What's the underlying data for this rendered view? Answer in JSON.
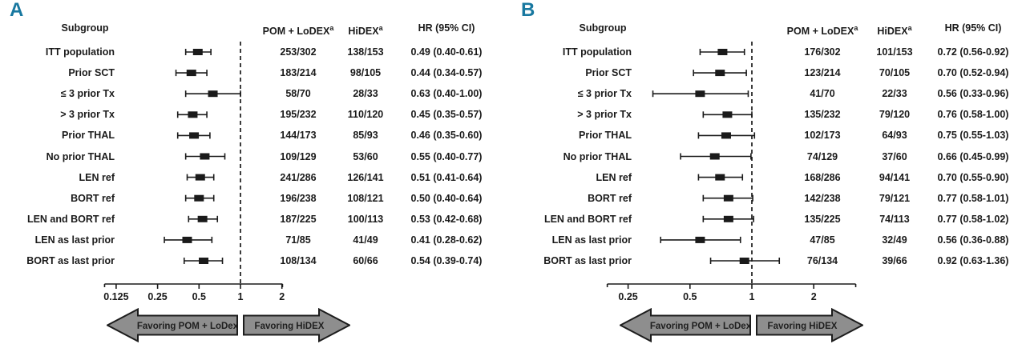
{
  "figure": {
    "background": "#ffffff",
    "accent_color": "#1878a0",
    "ink_color": "#1a1a1a",
    "arrow_fill": "#8e8e8e",
    "arrow_border": "#1c1c1c",
    "arrow_text_color": "#1f1f1f"
  },
  "chart_data": [
    {
      "type": "forest",
      "panel_label": "A",
      "columns": {
        "subgroup": "Subgroup",
        "pom_lodex": "POM + LoDEX",
        "pom_lodex_sup": "a",
        "hidex": "HiDEX",
        "hidex_sup": "a",
        "hr": "HR (95% CI)"
      },
      "rows": [
        {
          "label": "ITT population",
          "pom_lodex": "253/302",
          "hidex": "138/153",
          "hr_text": "0.49 (0.40-0.61)",
          "hr": 0.49,
          "lo": 0.4,
          "hi": 0.61
        },
        {
          "label": "Prior SCT",
          "pom_lodex": "183/214",
          "hidex": "98/105",
          "hr_text": "0.44 (0.34-0.57)",
          "hr": 0.44,
          "lo": 0.34,
          "hi": 0.57
        },
        {
          "label": "≤ 3 prior Tx",
          "pom_lodex": "58/70",
          "hidex": "28/33",
          "hr_text": "0.63 (0.40-1.00)",
          "hr": 0.63,
          "lo": 0.4,
          "hi": 1.0
        },
        {
          "label": "> 3 prior Tx",
          "pom_lodex": "195/232",
          "hidex": "110/120",
          "hr_text": "0.45 (0.35-0.57)",
          "hr": 0.45,
          "lo": 0.35,
          "hi": 0.57
        },
        {
          "label": "Prior THAL",
          "pom_lodex": "144/173",
          "hidex": "85/93",
          "hr_text": "0.46 (0.35-0.60)",
          "hr": 0.46,
          "lo": 0.35,
          "hi": 0.6
        },
        {
          "label": "No prior THAL",
          "pom_lodex": "109/129",
          "hidex": "53/60",
          "hr_text": "0.55 (0.40-0.77)",
          "hr": 0.55,
          "lo": 0.4,
          "hi": 0.77
        },
        {
          "label": "LEN ref",
          "pom_lodex": "241/286",
          "hidex": "126/141",
          "hr_text": "0.51 (0.41-0.64)",
          "hr": 0.51,
          "lo": 0.41,
          "hi": 0.64
        },
        {
          "label": "BORT ref",
          "pom_lodex": "196/238",
          "hidex": "108/121",
          "hr_text": "0.50 (0.40-0.64)",
          "hr": 0.5,
          "lo": 0.4,
          "hi": 0.64
        },
        {
          "label": "LEN and BORT ref",
          "pom_lodex": "187/225",
          "hidex": "100/113",
          "hr_text": "0.53 (0.42-0.68)",
          "hr": 0.53,
          "lo": 0.42,
          "hi": 0.68
        },
        {
          "label": "LEN as last prior",
          "pom_lodex": "71/85",
          "hidex": "41/49",
          "hr_text": "0.41 (0.28-0.62)",
          "hr": 0.41,
          "lo": 0.28,
          "hi": 0.62
        },
        {
          "label": "BORT as last prior",
          "pom_lodex": "108/134",
          "hidex": "60/66",
          "hr_text": "0.54 (0.39-0.74)",
          "hr": 0.54,
          "lo": 0.39,
          "hi": 0.74
        }
      ],
      "axis": {
        "scale": "log2",
        "ticks": [
          0.125,
          0.25,
          0.5,
          1,
          2
        ],
        "tick_labels": [
          "0.125",
          "0.25",
          "0.5",
          "1",
          "2"
        ],
        "min": 0.103,
        "max": 2.02,
        "reference_line": 1
      },
      "arrows": {
        "left": "Favoring POM + LoDex",
        "right": "Favoring HiDEX"
      }
    },
    {
      "type": "forest",
      "panel_label": "B",
      "columns": {
        "subgroup": "Subgroup",
        "pom_lodex": "POM + LoDEX",
        "pom_lodex_sup": "a",
        "hidex": "HiDEX",
        "hidex_sup": "a",
        "hr": "HR (95% CI)"
      },
      "rows": [
        {
          "label": "ITT population",
          "pom_lodex": "176/302",
          "hidex": "101/153",
          "hr_text": "0.72 (0.56-0.92)",
          "hr": 0.72,
          "lo": 0.56,
          "hi": 0.92
        },
        {
          "label": "Prior SCT",
          "pom_lodex": "123/214",
          "hidex": "70/105",
          "hr_text": "0.70 (0.52-0.94)",
          "hr": 0.7,
          "lo": 0.52,
          "hi": 0.94
        },
        {
          "label": "≤ 3 prior Tx",
          "pom_lodex": "41/70",
          "hidex": "22/33",
          "hr_text": "0.56 (0.33-0.96)",
          "hr": 0.56,
          "lo": 0.33,
          "hi": 0.96
        },
        {
          "label": "> 3 prior Tx",
          "pom_lodex": "135/232",
          "hidex": "79/120",
          "hr_text": "0.76 (0.58-1.00)",
          "hr": 0.76,
          "lo": 0.58,
          "hi": 1.0
        },
        {
          "label": "Prior THAL",
          "pom_lodex": "102/173",
          "hidex": "64/93",
          "hr_text": "0.75 (0.55-1.03)",
          "hr": 0.75,
          "lo": 0.55,
          "hi": 1.03
        },
        {
          "label": "No prior THAL",
          "pom_lodex": "74/129",
          "hidex": "37/60",
          "hr_text": "0.66 (0.45-0.99)",
          "hr": 0.66,
          "lo": 0.45,
          "hi": 0.99
        },
        {
          "label": "LEN ref",
          "pom_lodex": "168/286",
          "hidex": "94/141",
          "hr_text": "0.70 (0.55-0.90)",
          "hr": 0.7,
          "lo": 0.55,
          "hi": 0.9
        },
        {
          "label": "BORT ref",
          "pom_lodex": "142/238",
          "hidex": "79/121",
          "hr_text": "0.77 (0.58-1.01)",
          "hr": 0.77,
          "lo": 0.58,
          "hi": 1.01
        },
        {
          "label": "LEN and BORT ref",
          "pom_lodex": "135/225",
          "hidex": "74/113",
          "hr_text": "0.77 (0.58-1.02)",
          "hr": 0.77,
          "lo": 0.58,
          "hi": 1.02
        },
        {
          "label": "LEN as last prior",
          "pom_lodex": "47/85",
          "hidex": "32/49",
          "hr_text": "0.56 (0.36-0.88)",
          "hr": 0.56,
          "lo": 0.36,
          "hi": 0.88
        },
        {
          "label": "BORT as last prior",
          "pom_lodex": "76/134",
          "hidex": "39/66",
          "hr_text": "0.92 (0.63-1.36)",
          "hr": 0.92,
          "lo": 0.63,
          "hi": 1.36
        }
      ],
      "axis": {
        "scale": "log2",
        "ticks": [
          0.25,
          0.5,
          1,
          2
        ],
        "tick_labels": [
          "0.25",
          "0.5",
          "1",
          "2"
        ],
        "min": 0.198,
        "max": 3.2,
        "reference_line": 1
      },
      "arrows": {
        "left": "Favoring POM + LoDex",
        "right": "Favoring HiDEX"
      }
    }
  ]
}
